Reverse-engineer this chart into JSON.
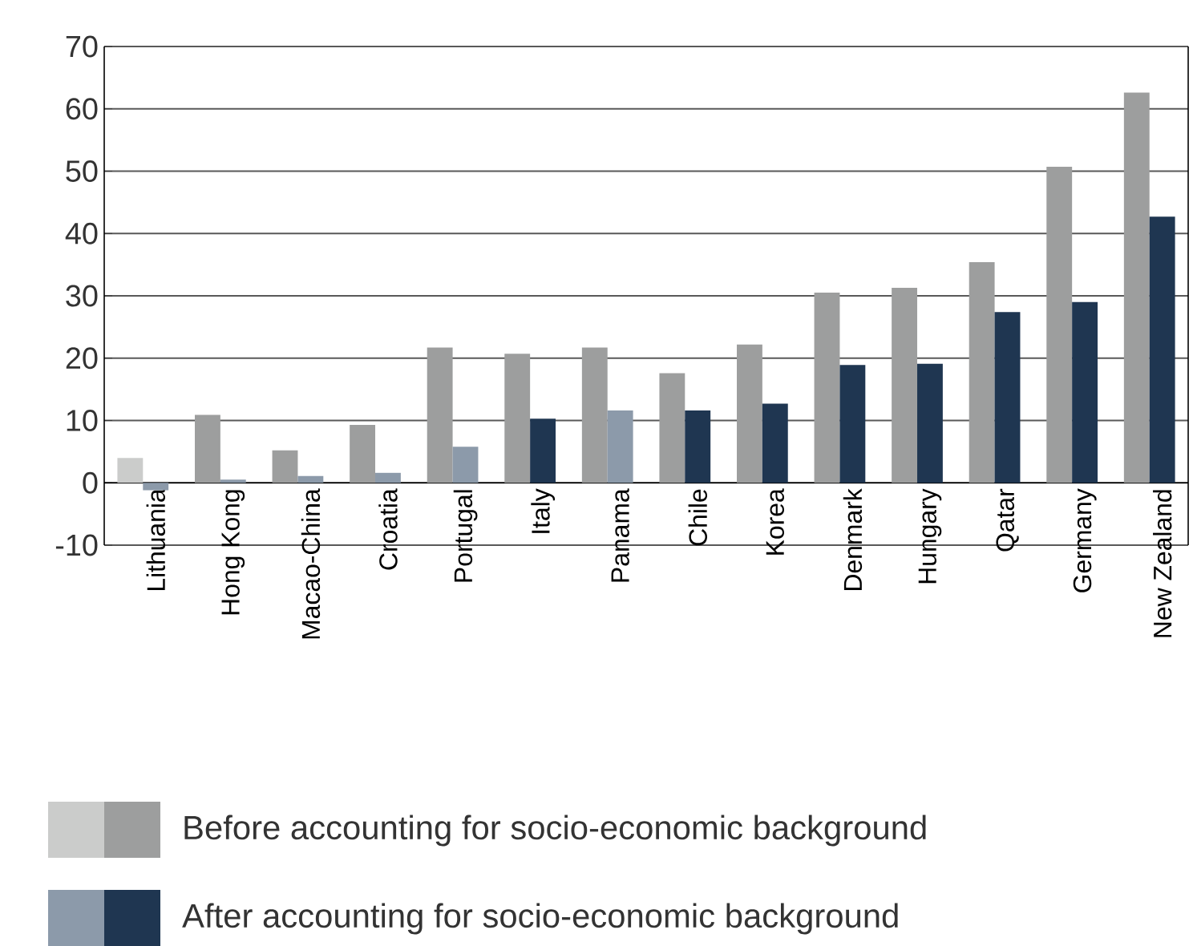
{
  "chart_data": {
    "type": "bar",
    "categories": [
      "Lithuania",
      "Hong Kong",
      "Macao-China",
      "Croatia",
      "Portugal",
      "Italy",
      "Panama",
      "Chile",
      "Korea",
      "Denmark",
      "Hungary",
      "Qatar",
      "Germany",
      "New Zealand"
    ],
    "series": [
      {
        "name": "Before accounting for socio-economic background",
        "color": "#9d9e9e",
        "colors": [
          "#cbcccb",
          "#9d9e9e",
          "#9d9e9e",
          "#9d9e9e",
          "#9d9e9e",
          "#9d9e9e",
          "#9d9e9e",
          "#9d9e9e",
          "#9d9e9e",
          "#9d9e9e",
          "#9d9e9e",
          "#9d9e9e",
          "#9d9e9e",
          "#9d9e9e"
        ],
        "values": [
          4.0,
          10.9,
          5.2,
          9.3,
          21.7,
          20.7,
          21.7,
          17.6,
          22.2,
          30.5,
          31.3,
          35.4,
          50.7,
          62.6
        ]
      },
      {
        "name": "After accounting for socio-economic background",
        "color": "#1f3651",
        "colors": [
          "#8c9aaa",
          "#8c9aaa",
          "#8c9aaa",
          "#8c9aaa",
          "#8c9aaa",
          "#1f3651",
          "#8c9aaa",
          "#1f3651",
          "#1f3651",
          "#1f3651",
          "#1f3651",
          "#1f3651",
          "#1f3651",
          "#1f3651"
        ],
        "values": [
          -1.2,
          0.5,
          1.1,
          1.6,
          5.8,
          10.3,
          11.6,
          11.6,
          12.7,
          18.9,
          19.1,
          27.4,
          29.0,
          42.7
        ]
      }
    ],
    "ylim": [
      -10,
      70
    ],
    "yticks": [
      -10,
      0,
      10,
      20,
      30,
      40,
      50,
      60,
      70
    ],
    "grid": "y",
    "legend": "bottom"
  }
}
